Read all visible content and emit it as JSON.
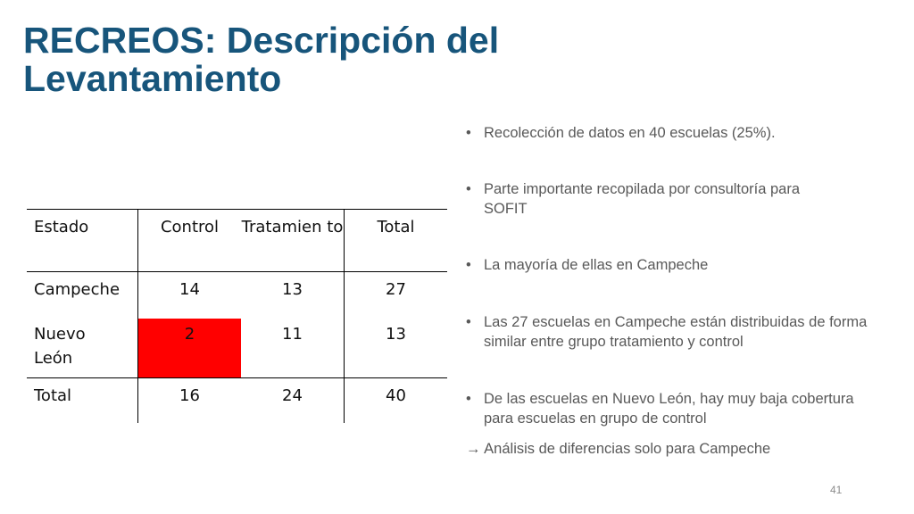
{
  "title": {
    "line1": "RECREOS: Descripción del",
    "line2": "Levantamiento"
  },
  "table": {
    "headers": [
      "Estado",
      "Control",
      "Tratamien to",
      "Total"
    ],
    "rows": [
      {
        "estado": "Campeche",
        "control": "14",
        "tratamiento": "13",
        "total": "27"
      },
      {
        "estado": "Nuevo León",
        "control": "2",
        "tratamiento": "11",
        "total": "13"
      },
      {
        "estado": "Total",
        "control": "16",
        "tratamiento": "24",
        "total": "40"
      }
    ],
    "highlight_color": "#ff0000"
  },
  "bullets": [
    "Recolección de datos en 40 escuelas (25%).",
    "Parte importante recopilada por consultoría para SOFIT",
    "La mayoría de ellas en Campeche",
    "Las 27 escuelas en Campeche están distribuidas de forma similar entre grupo tratamiento y control",
    "De las escuelas en Nuevo León, hay muy baja cobertura para escuelas en grupo de control"
  ],
  "conclusion": "→ Análisis de diferencias solo para Campeche",
  "page_number": "41",
  "colors": {
    "title": "#17557b",
    "body_text": "#595959"
  }
}
